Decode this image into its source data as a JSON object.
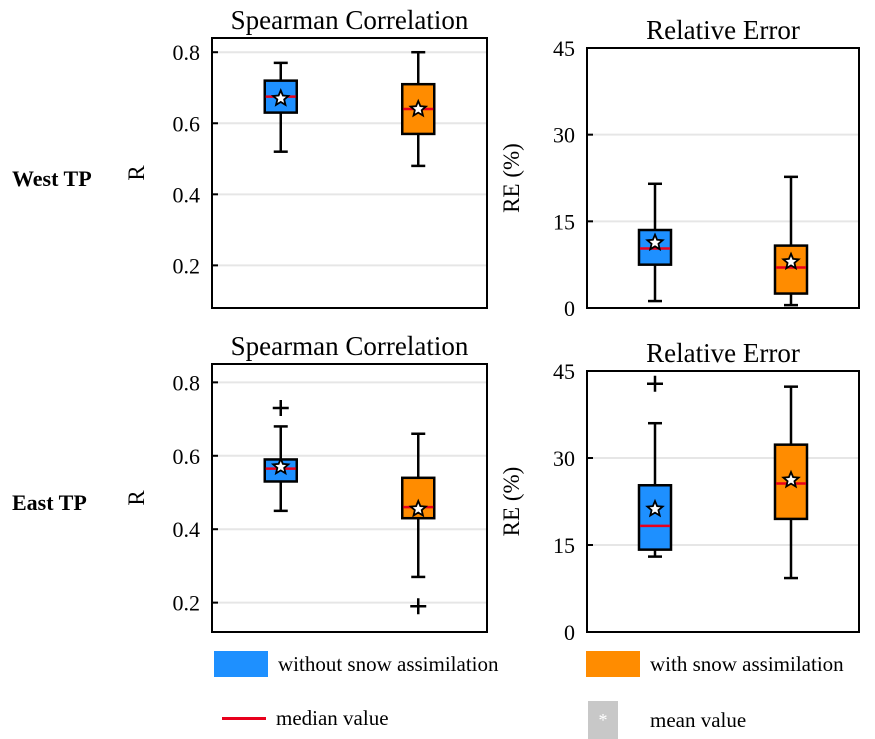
{
  "row_labels": {
    "west": "West TP",
    "east": "East TP"
  },
  "legend": {
    "without": "without snow assimilation",
    "with": "with snow assimilation",
    "median": "median value",
    "mean": "mean value",
    "mean_symbol": "*"
  },
  "colors": {
    "without": "#1e90ff",
    "with": "#ff8c00",
    "median": "#e8001c",
    "grid": "#e6e6e6",
    "mean_swatch": "#c8c8c8"
  },
  "chart_data": [
    {
      "type": "box",
      "region": "West TP",
      "title": "Spearman Correlation",
      "ylabel": "R",
      "ylim": [
        0.08,
        0.84
      ],
      "yticks": [
        "0.2",
        "0.4",
        "0.6",
        "0.8"
      ],
      "grid": true,
      "series": [
        {
          "name": "without snow assimilation",
          "whisker_low": 0.52,
          "q1": 0.63,
          "median": 0.675,
          "q3": 0.72,
          "whisker_high": 0.77,
          "mean": 0.67,
          "outliers": []
        },
        {
          "name": "with snow assimilation",
          "whisker_low": 0.48,
          "q1": 0.57,
          "median": 0.64,
          "q3": 0.71,
          "whisker_high": 0.8,
          "mean": 0.64,
          "outliers": []
        }
      ]
    },
    {
      "type": "box",
      "region": "West TP",
      "title": "Relative Error",
      "ylabel": "RE (%)",
      "ylim": [
        0,
        45
      ],
      "yticks": [
        "0",
        "15",
        "30",
        "45"
      ],
      "grid": true,
      "series": [
        {
          "name": "without snow assimilation",
          "whisker_low": 1.2,
          "q1": 7.5,
          "median": 10.3,
          "q3": 13.5,
          "whisker_high": 21.5,
          "mean": 11.3,
          "outliers": []
        },
        {
          "name": "with snow assimilation",
          "whisker_low": 0.5,
          "q1": 2.5,
          "median": 7.0,
          "q3": 10.8,
          "whisker_high": 22.7,
          "mean": 8.0,
          "outliers": []
        }
      ]
    },
    {
      "type": "box",
      "region": "East TP",
      "title": "Spearman Correlation",
      "ylabel": "R",
      "ylim": [
        0.12,
        0.85
      ],
      "yticks": [
        "0.2",
        "0.4",
        "0.6",
        "0.8"
      ],
      "grid": true,
      "series": [
        {
          "name": "without snow assimilation",
          "whisker_low": 0.45,
          "q1": 0.53,
          "median": 0.565,
          "q3": 0.59,
          "whisker_high": 0.68,
          "mean": 0.57,
          "outliers": [
            0.73
          ]
        },
        {
          "name": "with snow assimilation",
          "whisker_low": 0.27,
          "q1": 0.43,
          "median": 0.46,
          "q3": 0.54,
          "whisker_high": 0.66,
          "mean": 0.455,
          "outliers": [
            0.19
          ]
        }
      ]
    },
    {
      "type": "box",
      "region": "East TP",
      "title": "Relative Error",
      "ylabel": "RE (%)",
      "ylim": [
        0,
        45
      ],
      "yticks": [
        "0",
        "15",
        "30",
        "45"
      ],
      "grid": true,
      "series": [
        {
          "name": "without snow assimilation",
          "whisker_low": 13.0,
          "q1": 14.2,
          "median": 18.3,
          "q3": 25.3,
          "whisker_high": 36.0,
          "mean": 21.2,
          "outliers": [
            42.8
          ]
        },
        {
          "name": "with snow assimilation",
          "whisker_low": 9.3,
          "q1": 19.5,
          "median": 25.6,
          "q3": 32.3,
          "whisker_high": 42.3,
          "mean": 26.2,
          "outliers": []
        }
      ]
    }
  ]
}
